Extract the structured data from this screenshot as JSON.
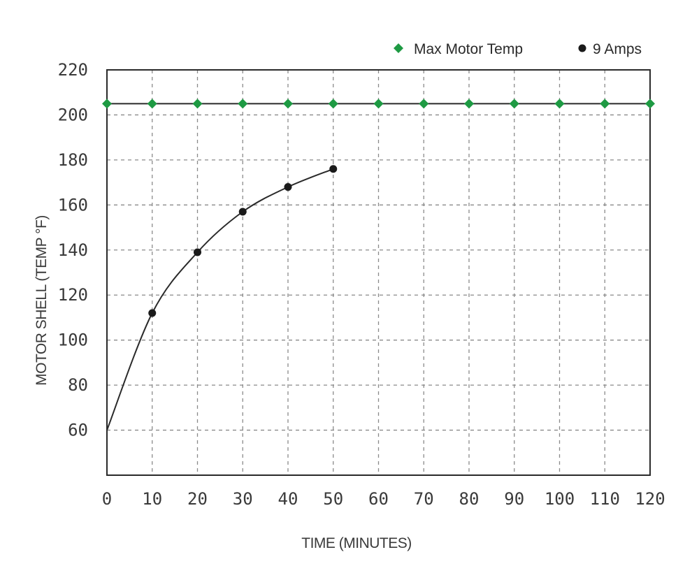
{
  "chart_data": {
    "type": "line",
    "xlabel": "TIME (MINUTES)",
    "ylabel": "MOTOR SHELL (TEMP °F)",
    "xlim": [
      0,
      120
    ],
    "ylim": [
      40,
      220
    ],
    "x_ticks": [
      0,
      10,
      20,
      30,
      40,
      50,
      60,
      70,
      80,
      90,
      100,
      110,
      120
    ],
    "y_ticks": [
      60,
      80,
      100,
      120,
      140,
      160,
      180,
      200,
      220
    ],
    "grid": true,
    "legend_position": "top-right",
    "series": [
      {
        "name": "Max Motor Temp",
        "color": "#1e9a43",
        "marker": "diamond",
        "x": [
          0,
          10,
          20,
          30,
          40,
          50,
          60,
          70,
          80,
          90,
          100,
          110,
          120
        ],
        "y": [
          205,
          205,
          205,
          205,
          205,
          205,
          205,
          205,
          205,
          205,
          205,
          205,
          205
        ]
      },
      {
        "name": "9 Amps",
        "color": "#1a1a1a",
        "marker": "circle",
        "x": [
          0,
          10,
          20,
          30,
          40,
          50
        ],
        "y": [
          60,
          112,
          139,
          157,
          168,
          176
        ]
      }
    ]
  }
}
